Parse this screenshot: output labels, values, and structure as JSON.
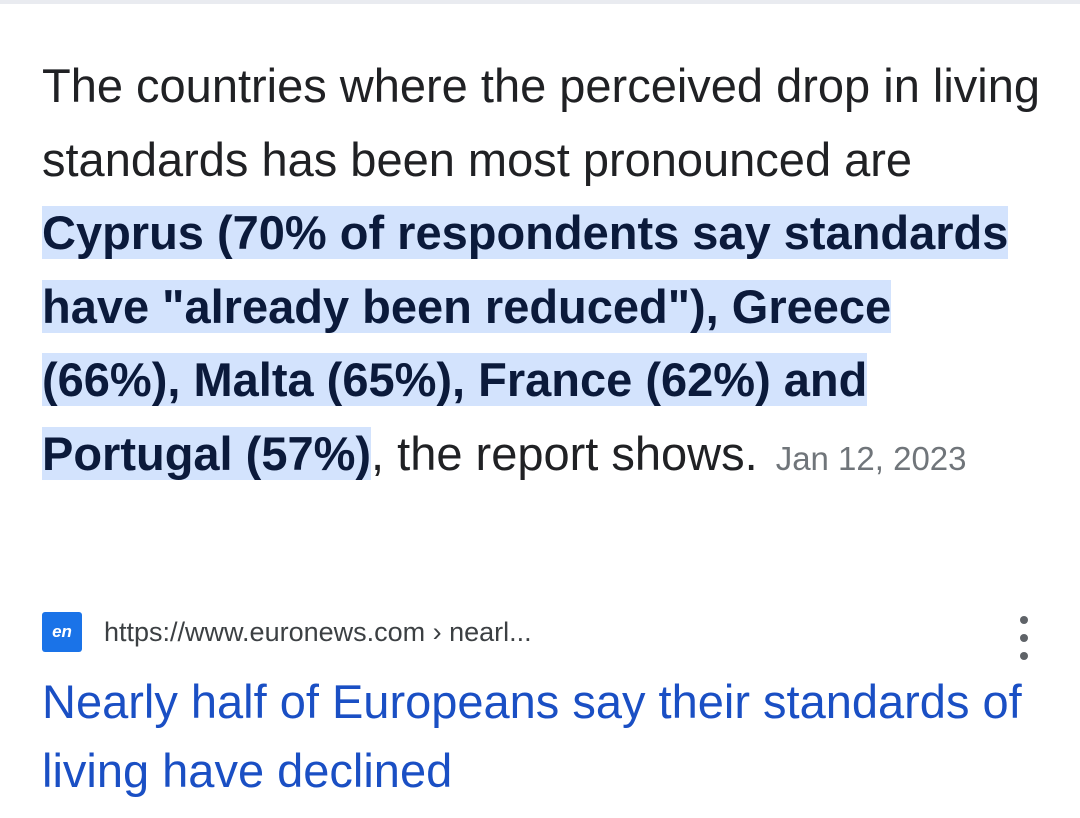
{
  "snippet": {
    "text_before": "The countries where the perceived drop in living standards has been most pronounced are ",
    "highlighted": "Cyprus (70% of respondents say standards have \"already been reduced\"), Greece (66%), Malta (65%), France (62%) and Portugal (57%)",
    "text_after": ", the report shows.",
    "date": "Jan 12, 2023"
  },
  "result": {
    "favicon_text": "en",
    "favicon_color": "#1a73e8",
    "url": "https://www.euronews.com › nearl...",
    "more_icon": "more-vert-icon",
    "title": "Nearly half of Europeans say their standards of living have declined",
    "title_color": "#1a4fc4"
  },
  "colors": {
    "highlight_bg": "#d3e3fd",
    "text": "#202124",
    "date": "#70757a"
  }
}
